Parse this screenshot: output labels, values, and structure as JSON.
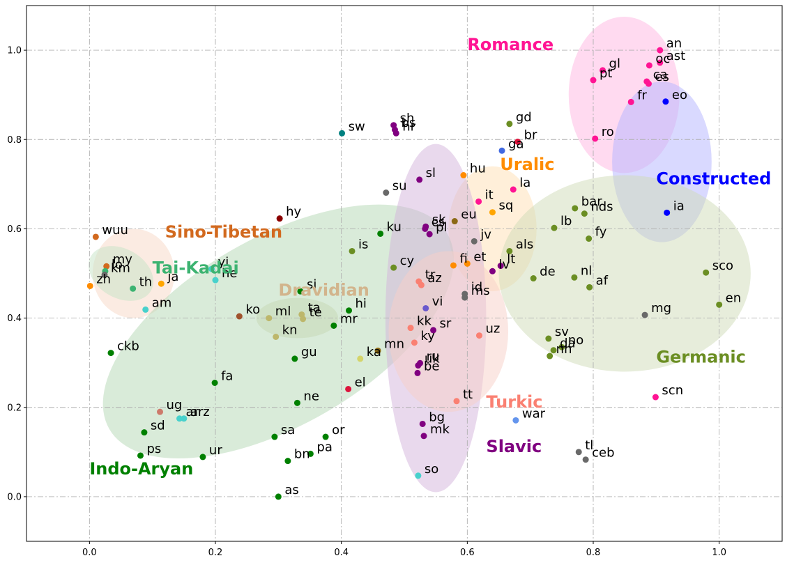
{
  "chart_data": {
    "type": "scatter",
    "title": "",
    "xlabel": "",
    "ylabel": "",
    "xlim": [
      -0.1,
      1.1
    ],
    "ylim": [
      -0.1,
      1.1
    ],
    "grid": true,
    "x_ticks": [
      0.0,
      0.2,
      0.4,
      0.6,
      0.8,
      1.0
    ],
    "y_ticks": [
      0.0,
      0.2,
      0.4,
      0.6,
      0.8,
      1.0
    ],
    "x_tick_labels": [
      "0.0",
      "0.2",
      "0.4",
      "0.6",
      "0.8",
      "1.0"
    ],
    "y_tick_labels": [
      "0.0",
      "0.2",
      "0.4",
      "0.6",
      "0.8",
      "1.0"
    ],
    "groups": [
      {
        "name": "Romance",
        "color": "#ff1493",
        "label_pos": [
          0.6,
          1.0
        ],
        "ellipse": {
          "cx": 0.849,
          "cy": 0.9,
          "rx": 0.088,
          "ry": 0.175,
          "angle": 0,
          "fill": "#ffb6e1"
        }
      },
      {
        "name": "Constructed",
        "color": "#0000ff",
        "label_pos": [
          0.9,
          0.7
        ],
        "ellipse": {
          "cx": 0.909,
          "cy": 0.75,
          "rx": 0.079,
          "ry": 0.18,
          "angle": 0,
          "fill": "#b3b3ff"
        }
      },
      {
        "name": "Uralic",
        "color": "#ff8c00",
        "label_pos": [
          0.652,
          0.732
        ],
        "ellipse": {
          "cx": 0.64,
          "cy": 0.6,
          "rx": 0.07,
          "ry": 0.14,
          "angle": 0,
          "fill": "#ffe0b3"
        }
      },
      {
        "name": "Germanic",
        "color": "#6b8e23",
        "label_pos": [
          0.9,
          0.3
        ],
        "ellipse": {
          "cx": 0.85,
          "cy": 0.5,
          "rx": 0.2,
          "ry": 0.22,
          "angle": 0,
          "fill": "#cfdcb8"
        }
      },
      {
        "name": "Sino-Tibetan",
        "color": "#d2691e",
        "label_pos": [
          0.12,
          0.58
        ],
        "ellipse": {
          "cx": 0.07,
          "cy": 0.5,
          "rx": 0.065,
          "ry": 0.1,
          "angle": 0,
          "fill": "#f8d8c5"
        }
      },
      {
        "name": "Tai-Kadai",
        "color": "#3cb371",
        "label_pos": [
          0.1,
          0.5
        ],
        "ellipse": {
          "cx": 0.05,
          "cy": 0.5,
          "rx": 0.055,
          "ry": 0.055,
          "angle": -30,
          "fill": "#c5e3c5"
        }
      },
      {
        "name": "Dravidian",
        "color": "#d2b48c",
        "label_pos": [
          0.3,
          0.45
        ],
        "ellipse": {
          "cx": 0.33,
          "cy": 0.4,
          "rx": 0.065,
          "ry": 0.045,
          "angle": 0,
          "fill": "#d6d8b4"
        }
      },
      {
        "name": "Indo-Aryan",
        "color": "#008000",
        "label_pos": [
          0.0,
          0.05
        ],
        "ellipse": {
          "cx": 0.3,
          "cy": 0.37,
          "rx": 0.31,
          "ry": 0.21,
          "angle": 30,
          "fill": "#b3d8b3"
        }
      },
      {
        "name": "Slavic",
        "color": "#800080",
        "label_pos": [
          0.63,
          0.1
        ],
        "ellipse": {
          "cx": 0.55,
          "cy": 0.4,
          "rx": 0.08,
          "ry": 0.39,
          "angle": 0,
          "fill": "#d4b3dc"
        }
      },
      {
        "name": "Turkic",
        "color": "#fa8072",
        "label_pos": [
          0.63,
          0.2
        ],
        "ellipse": {
          "cx": 0.57,
          "cy": 0.37,
          "rx": 0.095,
          "ry": 0.18,
          "angle": 0,
          "fill": "#f8d0c8"
        }
      }
    ],
    "points": [
      {
        "label": "an",
        "x": 0.906,
        "y": 1.0,
        "color": "#ff1493"
      },
      {
        "label": "ast",
        "x": 0.906,
        "y": 0.972,
        "color": "#ff1493"
      },
      {
        "label": "oc",
        "x": 0.889,
        "y": 0.966,
        "color": "#ff1493"
      },
      {
        "label": "gl",
        "x": 0.815,
        "y": 0.955,
        "color": "#ff1493"
      },
      {
        "label": "pt",
        "x": 0.8,
        "y": 0.933,
        "color": "#ff1493"
      },
      {
        "label": "ca",
        "x": 0.885,
        "y": 0.93,
        "color": "#ff1493"
      },
      {
        "label": "es",
        "x": 0.888,
        "y": 0.925,
        "color": "#ff1493"
      },
      {
        "label": "fr",
        "x": 0.86,
        "y": 0.884,
        "color": "#ff1493"
      },
      {
        "label": "eo",
        "x": 0.915,
        "y": 0.885,
        "color": "#0000ff"
      },
      {
        "label": "ro",
        "x": 0.803,
        "y": 0.802,
        "color": "#ff1493"
      },
      {
        "label": "ia",
        "x": 0.917,
        "y": 0.636,
        "color": "#0000ff"
      },
      {
        "label": "gd",
        "x": 0.667,
        "y": 0.835,
        "color": "#6b8e23"
      },
      {
        "label": "br",
        "x": 0.68,
        "y": 0.795,
        "color": "#dc143c"
      },
      {
        "label": "ga",
        "x": 0.655,
        "y": 0.775,
        "color": "#4169e1"
      },
      {
        "label": "la",
        "x": 0.673,
        "y": 0.688,
        "color": "#ff1493"
      },
      {
        "label": "it",
        "x": 0.618,
        "y": 0.661,
        "color": "#ff1493"
      },
      {
        "label": "sq",
        "x": 0.64,
        "y": 0.637,
        "color": "#ffa500"
      },
      {
        "label": "hu",
        "x": 0.594,
        "y": 0.72,
        "color": "#ff8c00"
      },
      {
        "label": "eu",
        "x": 0.58,
        "y": 0.617,
        "color": "#8b6914"
      },
      {
        "label": "jv",
        "x": 0.611,
        "y": 0.572,
        "color": "#696969"
      },
      {
        "label": "sl",
        "x": 0.524,
        "y": 0.71,
        "color": "#800080"
      },
      {
        "label": "sk",
        "x": 0.534,
        "y": 0.605,
        "color": "#800080"
      },
      {
        "label": "cs",
        "x": 0.533,
        "y": 0.6,
        "color": "#800080"
      },
      {
        "label": "pl",
        "x": 0.54,
        "y": 0.588,
        "color": "#800080"
      },
      {
        "label": "sh",
        "x": 0.483,
        "y": 0.832,
        "color": "#800080"
      },
      {
        "label": "bs",
        "x": 0.485,
        "y": 0.822,
        "color": "#800080"
      },
      {
        "label": "hr",
        "x": 0.487,
        "y": 0.814,
        "color": "#800080"
      },
      {
        "label": "sw",
        "x": 0.401,
        "y": 0.814,
        "color": "#008080"
      },
      {
        "label": "su",
        "x": 0.471,
        "y": 0.681,
        "color": "#696969"
      },
      {
        "label": "hy",
        "x": 0.302,
        "y": 0.623,
        "color": "#8b0000"
      },
      {
        "label": "ku",
        "x": 0.462,
        "y": 0.589,
        "color": "#008000"
      },
      {
        "label": "is",
        "x": 0.417,
        "y": 0.55,
        "color": "#6b8e23"
      },
      {
        "label": "cy",
        "x": 0.483,
        "y": 0.513,
        "color": "#6b8e23"
      },
      {
        "label": "fi",
        "x": 0.578,
        "y": 0.518,
        "color": "#ff8c00"
      },
      {
        "label": "et",
        "x": 0.6,
        "y": 0.522,
        "color": "#ff8c00"
      },
      {
        "label": "lt",
        "x": 0.653,
        "y": 0.517,
        "color": "#800080"
      },
      {
        "label": "lv",
        "x": 0.64,
        "y": 0.505,
        "color": "#800080"
      },
      {
        "label": "tr",
        "x": 0.523,
        "y": 0.482,
        "color": "#fa8072"
      },
      {
        "label": "az",
        "x": 0.527,
        "y": 0.474,
        "color": "#fa8072"
      },
      {
        "label": "id",
        "x": 0.596,
        "y": 0.454,
        "color": "#696969"
      },
      {
        "label": "ms",
        "x": 0.596,
        "y": 0.446,
        "color": "#696969"
      },
      {
        "label": "vi",
        "x": 0.534,
        "y": 0.422,
        "color": "#6a5acd"
      },
      {
        "label": "wuu",
        "x": 0.01,
        "y": 0.582,
        "color": "#d2691e"
      },
      {
        "label": "my",
        "x": 0.027,
        "y": 0.516,
        "color": "#d2691e"
      },
      {
        "label": "lo",
        "x": 0.025,
        "y": 0.505,
        "color": "#3cb371"
      },
      {
        "label": "km",
        "x": 0.024,
        "y": 0.497,
        "color": "#696969"
      },
      {
        "label": "zh",
        "x": 0.001,
        "y": 0.472,
        "color": "#ff8c00"
      },
      {
        "label": "th",
        "x": 0.069,
        "y": 0.466,
        "color": "#3cb371"
      },
      {
        "label": "ja",
        "x": 0.114,
        "y": 0.477,
        "color": "#ffa500"
      },
      {
        "label": "am",
        "x": 0.089,
        "y": 0.419,
        "color": "#48d1cc"
      },
      {
        "label": "yi",
        "x": 0.194,
        "y": 0.51,
        "color": "#48d1cc"
      },
      {
        "label": "he",
        "x": 0.2,
        "y": 0.485,
        "color": "#48d1cc"
      },
      {
        "label": "si",
        "x": 0.335,
        "y": 0.46,
        "color": "#008000"
      },
      {
        "label": "ko",
        "x": 0.238,
        "y": 0.404,
        "color": "#a0522d"
      },
      {
        "label": "ml",
        "x": 0.285,
        "y": 0.4,
        "color": "#bdb76b"
      },
      {
        "label": "ta",
        "x": 0.337,
        "y": 0.408,
        "color": "#bdb76b"
      },
      {
        "label": "te",
        "x": 0.339,
        "y": 0.398,
        "color": "#bdb76b"
      },
      {
        "label": "kn",
        "x": 0.296,
        "y": 0.358,
        "color": "#bdb76b"
      },
      {
        "label": "hi",
        "x": 0.412,
        "y": 0.417,
        "color": "#008000"
      },
      {
        "label": "mr",
        "x": 0.388,
        "y": 0.383,
        "color": "#008000"
      },
      {
        "label": "gu",
        "x": 0.326,
        "y": 0.309,
        "color": "#008000"
      },
      {
        "label": "kk",
        "x": 0.51,
        "y": 0.378,
        "color": "#fa8072"
      },
      {
        "label": "ky",
        "x": 0.516,
        "y": 0.345,
        "color": "#fa8072"
      },
      {
        "label": "mn",
        "x": 0.458,
        "y": 0.327,
        "color": "#8b6914"
      },
      {
        "label": "sr",
        "x": 0.546,
        "y": 0.373,
        "color": "#800080"
      },
      {
        "label": "uz",
        "x": 0.619,
        "y": 0.361,
        "color": "#fa8072"
      },
      {
        "label": "ka",
        "x": 0.43,
        "y": 0.309,
        "color": "#d4d46a"
      },
      {
        "label": "uk",
        "x": 0.522,
        "y": 0.294,
        "color": "#800080"
      },
      {
        "label": "ru",
        "x": 0.525,
        "y": 0.299,
        "color": "#800080"
      },
      {
        "label": "be",
        "x": 0.521,
        "y": 0.277,
        "color": "#800080"
      },
      {
        "label": "ckb",
        "x": 0.034,
        "y": 0.322,
        "color": "#008000"
      },
      {
        "label": "fa",
        "x": 0.199,
        "y": 0.255,
        "color": "#008000"
      },
      {
        "label": "el",
        "x": 0.411,
        "y": 0.241,
        "color": "#dc143c"
      },
      {
        "label": "ne",
        "x": 0.33,
        "y": 0.21,
        "color": "#008000"
      },
      {
        "label": "tt",
        "x": 0.583,
        "y": 0.214,
        "color": "#fa8072"
      },
      {
        "label": "ug",
        "x": 0.112,
        "y": 0.19,
        "color": "#cd7a6b"
      },
      {
        "label": "ar",
        "x": 0.143,
        "y": 0.175,
        "color": "#48d1cc"
      },
      {
        "label": "arz",
        "x": 0.15,
        "y": 0.175,
        "color": "#48d1cc"
      },
      {
        "label": "sd",
        "x": 0.087,
        "y": 0.144,
        "color": "#008000"
      },
      {
        "label": "sa",
        "x": 0.294,
        "y": 0.134,
        "color": "#008000"
      },
      {
        "label": "or",
        "x": 0.375,
        "y": 0.134,
        "color": "#008000"
      },
      {
        "label": "pa",
        "x": 0.351,
        "y": 0.096,
        "color": "#008000"
      },
      {
        "label": "bn",
        "x": 0.315,
        "y": 0.08,
        "color": "#008000"
      },
      {
        "label": "ps",
        "x": 0.081,
        "y": 0.092,
        "color": "#008000"
      },
      {
        "label": "ur",
        "x": 0.18,
        "y": 0.089,
        "color": "#008000"
      },
      {
        "label": "as",
        "x": 0.3,
        "y": 0.0,
        "color": "#008000"
      },
      {
        "label": "bg",
        "x": 0.529,
        "y": 0.163,
        "color": "#800080"
      },
      {
        "label": "mk",
        "x": 0.531,
        "y": 0.136,
        "color": "#800080"
      },
      {
        "label": "so",
        "x": 0.522,
        "y": 0.047,
        "color": "#48d1cc"
      },
      {
        "label": "war",
        "x": 0.677,
        "y": 0.171,
        "color": "#6495ed"
      },
      {
        "label": "tl",
        "x": 0.777,
        "y": 0.1,
        "color": "#696969"
      },
      {
        "label": "ceb",
        "x": 0.788,
        "y": 0.083,
        "color": "#696969"
      },
      {
        "label": "scn",
        "x": 0.899,
        "y": 0.223,
        "color": "#ff1493"
      },
      {
        "label": "bar",
        "x": 0.771,
        "y": 0.646,
        "color": "#6b8e23"
      },
      {
        "label": "nds",
        "x": 0.786,
        "y": 0.634,
        "color": "#6b8e23"
      },
      {
        "label": "lb",
        "x": 0.738,
        "y": 0.602,
        "color": "#6b8e23"
      },
      {
        "label": "fy",
        "x": 0.793,
        "y": 0.578,
        "color": "#6b8e23"
      },
      {
        "label": "als",
        "x": 0.667,
        "y": 0.55,
        "color": "#6b8e23"
      },
      {
        "label": "de",
        "x": 0.705,
        "y": 0.489,
        "color": "#6b8e23"
      },
      {
        "label": "nl",
        "x": 0.77,
        "y": 0.491,
        "color": "#6b8e23"
      },
      {
        "label": "af",
        "x": 0.794,
        "y": 0.469,
        "color": "#6b8e23"
      },
      {
        "label": "sco",
        "x": 0.979,
        "y": 0.502,
        "color": "#6b8e23"
      },
      {
        "label": "en",
        "x": 1.0,
        "y": 0.43,
        "color": "#6b8e23"
      },
      {
        "label": "mg",
        "x": 0.882,
        "y": 0.407,
        "color": "#696969"
      },
      {
        "label": "sv",
        "x": 0.729,
        "y": 0.354,
        "color": "#6b8e23"
      },
      {
        "label": "no",
        "x": 0.75,
        "y": 0.335,
        "color": "#6b8e23"
      },
      {
        "label": "da",
        "x": 0.737,
        "y": 0.328,
        "color": "#6b8e23"
      },
      {
        "label": "nn",
        "x": 0.731,
        "y": 0.315,
        "color": "#6b8e23"
      }
    ]
  }
}
